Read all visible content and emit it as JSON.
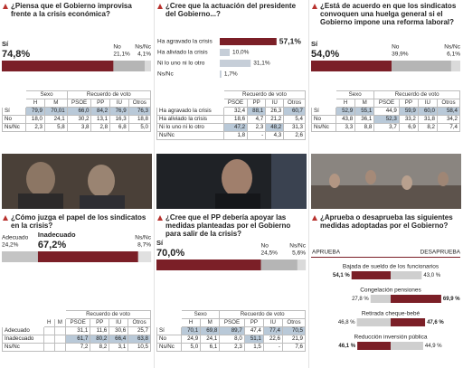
{
  "panels": [
    {
      "type": "stacked",
      "question": "¿Piensa que el Gobierno improvisa frente a la crisis económica?",
      "categories": [
        "Sí",
        "No",
        "Ns/Nc"
      ],
      "values": [
        74.8,
        21.1,
        4.1
      ],
      "value_labels": [
        "74,8%",
        "21,1%",
        "4,1%"
      ],
      "colors": [
        "#7b1f27",
        "#b5b5b5",
        "#dadada"
      ],
      "xlim": [
        0,
        100
      ],
      "table": {
        "groups": [
          {
            "label": "Sexo",
            "columns": [
              "H",
              "M"
            ]
          },
          {
            "label": "Recuerdo de voto",
            "columns": [
              "PSOE",
              "PP",
              "IU",
              "Otros"
            ]
          }
        ],
        "rows": [
          {
            "label": "Sí",
            "cells": [
              "79,9",
              "70,01",
              "66,0",
              "84,2",
              "76,9",
              "76,3"
            ]
          },
          {
            "label": "No",
            "cells": [
              "18,0",
              "24,1",
              "30,2",
              "13,1",
              "16,3",
              "18,8"
            ]
          },
          {
            "label": "Ns/Nc",
            "cells": [
              "2,3",
              "5,8",
              "3,8",
              "2,8",
              "6,8",
              "5,0"
            ]
          }
        ]
      }
    },
    {
      "type": "bars",
      "question": "¿Cree que la actuación del presidente del Gobierno...?",
      "categories": [
        "Ha agravado la crisis",
        "Ha aliviado la crisis",
        "Ni lo uno ni lo otro",
        "Ns/Nc"
      ],
      "values": [
        57.1,
        10.0,
        31.1,
        1.7
      ],
      "value_labels": [
        "57,1%",
        "10,0%",
        "31,1%",
        "1,7%"
      ],
      "colors": [
        "#7b1f27",
        "#c6ced8",
        "#c6ced8",
        "#c6ced8"
      ],
      "xlim": [
        0,
        100
      ],
      "table": {
        "groups": [
          {
            "label": "Recuerdo de voto",
            "columns": [
              "PSOE",
              "PP",
              "IU",
              "Otros"
            ]
          }
        ],
        "rows": [
          {
            "label": "Ha agravado la crisis",
            "cells": [
              "32,4",
              "88,1",
              "26,3",
              "60,7"
            ]
          },
          {
            "label": "Ha aliviado la crisis",
            "cells": [
              "18,6",
              "4,7",
              "21,2",
              "5,4"
            ]
          },
          {
            "label": "Ni lo uno ni lo otro",
            "cells": [
              "47,2",
              "2,3",
              "48,2",
              "31,3"
            ]
          },
          {
            "label": "Ns/Nc",
            "cells": [
              "1,8",
              "-",
              "4,3",
              "2,6"
            ]
          }
        ]
      }
    },
    {
      "type": "stacked",
      "question": "¿Está de acuerdo en que los sindicatos convoquen una huelga general si el Gobierno impone una reforma laboral?",
      "categories": [
        "Sí",
        "No",
        "Ns/Nc"
      ],
      "values": [
        54.0,
        39.9,
        6.1
      ],
      "value_labels": [
        "54,0%",
        "39,9%",
        "6,1%"
      ],
      "colors": [
        "#7b1f27",
        "#b5b5b5",
        "#dadada"
      ],
      "xlim": [
        0,
        100
      ],
      "table": {
        "groups": [
          {
            "label": "Sexo",
            "columns": [
              "H",
              "M"
            ]
          },
          {
            "label": "Recuerdo de voto",
            "columns": [
              "PSOE",
              "PP",
              "IU",
              "Otros"
            ]
          }
        ],
        "rows": [
          {
            "label": "Sí",
            "cells": [
              "52,9",
              "55,1",
              "44,9",
              "59,9",
              "60,0",
              "58,4"
            ]
          },
          {
            "label": "No",
            "cells": [
              "43,8",
              "36,1",
              "52,3",
              "33,2",
              "31,8",
              "34,2"
            ]
          },
          {
            "label": "Ns/Nc",
            "cells": [
              "3,3",
              "8,8",
              "3,7",
              "6,9",
              "8,2",
              "7,4"
            ]
          }
        ]
      }
    },
    {
      "type": "stacked",
      "question": "¿Cómo juzga el papel de los sindicatos en la crisis?",
      "categories": [
        "Adecuado",
        "Inadecuado",
        "Ns/Nc"
      ],
      "values": [
        24.2,
        67.2,
        8.7
      ],
      "value_labels": [
        "24,2%",
        "67,2%",
        "8,7%"
      ],
      "colors": [
        "#c4c4c4",
        "#7b1f27",
        "#e0e0e0"
      ],
      "xlim": [
        0,
        100
      ],
      "table": {
        "groups": [
          {
            "label": null,
            "columns": [
              "H",
              "M"
            ]
          },
          {
            "label": "Recuerdo de voto",
            "columns": [
              "PSOE",
              "PP",
              "IU",
              "Otros"
            ]
          }
        ],
        "rows": [
          {
            "label": "Adecuado",
            "cells": [
              null,
              null,
              "31,1",
              "11,6",
              "30,6",
              "25,7"
            ]
          },
          {
            "label": "Inadecuado",
            "cells": [
              null,
              null,
              "61,7",
              "80,2",
              "66,4",
              "63,8"
            ]
          },
          {
            "label": "Ns/Nc",
            "cells": [
              null,
              null,
              "7,2",
              "8,2",
              "3,1",
              "10,5"
            ]
          }
        ]
      }
    },
    {
      "type": "stacked",
      "question": "¿Cree que el PP debería apoyar las medidas planteadas por el Gobierno para salir de la crisis?",
      "categories": [
        "Sí",
        "No",
        "Ns/Nc"
      ],
      "values": [
        70.0,
        24.5,
        5.6
      ],
      "value_labels": [
        "70,0%",
        "24,5%",
        "5,6%"
      ],
      "colors": [
        "#7b1f27",
        "#b5b5b5",
        "#dadada"
      ],
      "xlim": [
        0,
        100
      ],
      "table": {
        "groups": [
          {
            "label": "Sexo",
            "columns": [
              "H",
              "M"
            ]
          },
          {
            "label": "Recuerdo de voto",
            "columns": [
              "PSOE",
              "PP",
              "IU",
              "Otros"
            ]
          }
        ],
        "rows": [
          {
            "label": "Sí",
            "cells": [
              "70,1",
              "69,8",
              "89,7",
              "47,4",
              "77,4",
              "70,5"
            ]
          },
          {
            "label": "No",
            "cells": [
              "24,9",
              "24,1",
              "8,0",
              "51,1",
              "22,6",
              "21,9"
            ]
          },
          {
            "label": "Ns/Nc",
            "cells": [
              "5,0",
              "6,1",
              "2,3",
              "1,5",
              "-",
              "7,6"
            ]
          }
        ]
      }
    },
    {
      "type": "diverging",
      "question": "¿Aprueba o desaprueba las siguientes medidas adoptadas por el Gobierno?",
      "headers": [
        "APRUEBA",
        "DESAPRUEBA"
      ],
      "categories": [
        "Bajada de sueldo de los funcionarios",
        "Congelación  pensiones",
        "Retirada cheque-bebé",
        "Reducción inversión pública"
      ],
      "approve": [
        54.1,
        27.8,
        46.8,
        46.1
      ],
      "approve_labels": [
        "54,1 %",
        "27,8 %",
        "46,8 %",
        "46,1 %"
      ],
      "disapprove": [
        43.0,
        69.9,
        47.6,
        44.9
      ],
      "disapprove_labels": [
        "43,0 %",
        "69,9 %",
        "47,6 %",
        "44,9 %"
      ],
      "colors": [
        "#7b1f27",
        "#cfcfcf"
      ],
      "xlim": [
        0,
        100
      ]
    }
  ]
}
